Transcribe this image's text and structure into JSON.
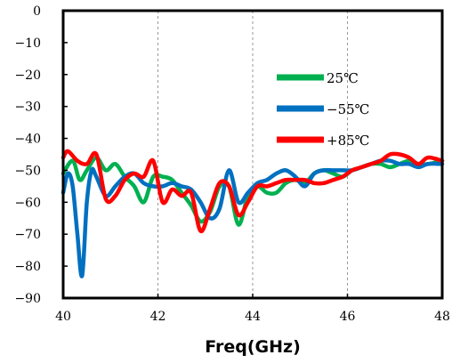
{
  "chart_data": {
    "type": "line",
    "xlabel": "Freq(GHz)",
    "ylabel": "",
    "xlim": [
      40,
      48
    ],
    "ylim": [
      -90,
      0
    ],
    "x_ticks": [
      40,
      42,
      44,
      46,
      48
    ],
    "x_tick_labels": [
      "40",
      "42",
      "44",
      "46",
      "48"
    ],
    "y_ticks": [
      0,
      -10,
      -20,
      -30,
      -40,
      -50,
      -60,
      -70,
      -80,
      -90
    ],
    "y_tick_labels": [
      "0",
      "−10",
      "−20",
      "−30",
      "−40",
      "−50",
      "−60",
      "−70",
      "−80",
      "−90"
    ],
    "grid": true,
    "legend_position": "upper-right",
    "series": [
      {
        "name": "25℃",
        "color": "#00b050",
        "x": [
          40.0,
          40.2,
          40.35,
          40.5,
          40.7,
          40.9,
          41.1,
          41.3,
          41.5,
          41.7,
          41.9,
          42.1,
          42.3,
          42.5,
          42.7,
          42.9,
          43.1,
          43.3,
          43.5,
          43.7,
          43.9,
          44.1,
          44.3,
          44.5,
          44.7,
          44.9,
          45.1,
          45.3,
          45.5,
          45.7,
          45.9,
          46.1,
          46.3,
          46.5,
          46.7,
          46.9,
          47.1,
          47.3,
          47.5,
          47.7,
          48.0
        ],
        "y": [
          -51,
          -47,
          -53,
          -50,
          -46,
          -50,
          -48,
          -52,
          -55,
          -60,
          -52,
          -52,
          -53,
          -57,
          -61,
          -66,
          -63,
          -55,
          -55,
          -67,
          -58,
          -55,
          -57,
          -57,
          -54,
          -53,
          -54,
          -51,
          -50,
          -51,
          -52,
          -50,
          -49,
          -48,
          -48,
          -49,
          -48,
          -47,
          -48,
          -48,
          -47
        ]
      },
      {
        "name": "−55℃",
        "color": "#0070c0",
        "x": [
          40.0,
          40.1,
          40.2,
          40.3,
          40.4,
          40.5,
          40.6,
          40.7,
          40.9,
          41.1,
          41.3,
          41.5,
          41.7,
          41.9,
          42.1,
          42.3,
          42.5,
          42.7,
          42.9,
          43.1,
          43.3,
          43.5,
          43.7,
          43.9,
          44.1,
          44.3,
          44.5,
          44.7,
          44.9,
          45.1,
          45.3,
          45.5,
          45.7,
          45.9,
          46.1,
          46.3,
          46.5,
          46.7,
          46.9,
          47.1,
          47.3,
          47.5,
          47.7,
          48.0
        ],
        "y": [
          -57,
          -51,
          -55,
          -70,
          -83,
          -60,
          -50,
          -52,
          -58,
          -55,
          -52,
          -51,
          -54,
          -55,
          -55,
          -54,
          -55,
          -56,
          -60,
          -65,
          -62,
          -50,
          -60,
          -57,
          -54,
          -53,
          -51,
          -50,
          -52,
          -55,
          -51,
          -50,
          -50,
          -50,
          -50,
          -49,
          -48,
          -47,
          -47,
          -48,
          -48,
          -49,
          -48,
          -48
        ]
      },
      {
        "name": "+85℃",
        "color": "#ff0000",
        "x": [
          40.0,
          40.1,
          40.3,
          40.5,
          40.7,
          40.9,
          41.1,
          41.3,
          41.5,
          41.7,
          41.9,
          42.1,
          42.3,
          42.5,
          42.7,
          42.9,
          43.1,
          43.3,
          43.5,
          43.7,
          43.9,
          44.1,
          44.3,
          44.5,
          44.7,
          44.9,
          45.1,
          45.3,
          45.5,
          45.7,
          45.9,
          46.1,
          46.3,
          46.5,
          46.7,
          46.9,
          47.1,
          47.3,
          47.5,
          47.7,
          48.0
        ],
        "y": [
          -46,
          -44,
          -47,
          -48,
          -45,
          -59,
          -58,
          -53,
          -51,
          -52,
          -47,
          -60,
          -56,
          -58,
          -57,
          -69,
          -62,
          -54,
          -55,
          -64,
          -60,
          -55,
          -55,
          -54,
          -53,
          -53,
          -53,
          -54,
          -54,
          -53,
          -52,
          -50,
          -49,
          -48,
          -47,
          -45,
          -45,
          -46,
          -48,
          -46,
          -47
        ]
      }
    ]
  }
}
